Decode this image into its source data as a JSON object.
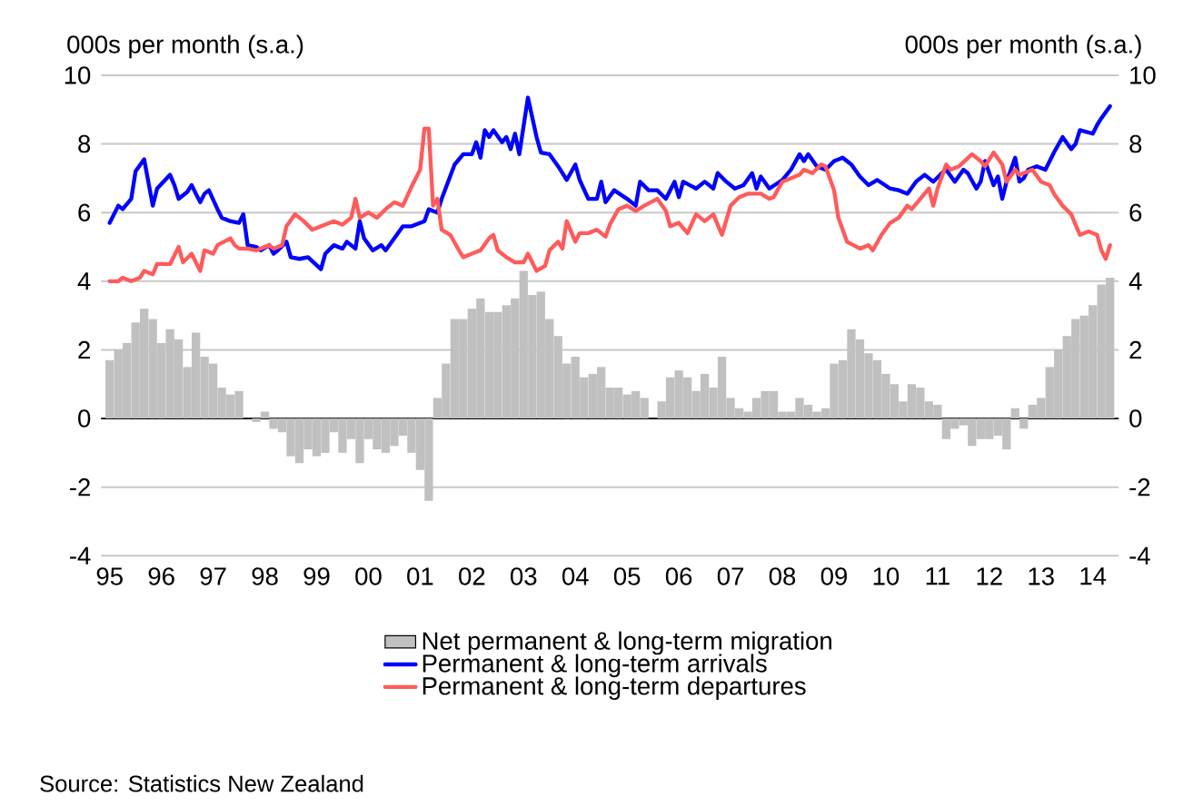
{
  "chart_data": {
    "type": "bar",
    "ylabel": "000s per month (s.a.)",
    "y2label": "000s per month (s.a.)",
    "xlim": [
      "1994-11",
      "2014-07"
    ],
    "xticks": [
      {
        "value": "1995",
        "label": "95"
      },
      {
        "value": "1996",
        "label": "96"
      },
      {
        "value": "1997",
        "label": "97"
      },
      {
        "value": "1998",
        "label": "98"
      },
      {
        "value": "1999",
        "label": "99"
      },
      {
        "value": "2000",
        "label": "00"
      },
      {
        "value": "2001",
        "label": "01"
      },
      {
        "value": "2002",
        "label": "02"
      },
      {
        "value": "2003",
        "label": "03"
      },
      {
        "value": "2004",
        "label": "04"
      },
      {
        "value": "2005",
        "label": "05"
      },
      {
        "value": "2006",
        "label": "06"
      },
      {
        "value": "2007",
        "label": "07"
      },
      {
        "value": "2008",
        "label": "08"
      },
      {
        "value": "2009",
        "label": "09"
      },
      {
        "value": "2010",
        "label": "10"
      },
      {
        "value": "2011",
        "label": "11"
      },
      {
        "value": "2012",
        "label": "12"
      },
      {
        "value": "2013",
        "label": "13"
      },
      {
        "value": "2014",
        "label": "14"
      }
    ],
    "ylim": [
      -4,
      10
    ],
    "yticks": [
      -4,
      -2,
      0,
      2,
      4,
      6,
      8,
      10
    ],
    "y2lim": [
      -4,
      10
    ],
    "y2ticks": [
      -4,
      -2,
      0,
      2,
      4,
      6,
      8,
      10
    ],
    "grid": "y",
    "legend": "bottom",
    "annotations": [
      "Source: Statistics New Zealand"
    ],
    "series": [
      {
        "name": "Net permanent & long-term migration",
        "color": "#c0c0c0",
        "x": [
          "1995-01",
          "1995-03",
          "1995-05",
          "1995-07",
          "1995-09",
          "1995-11",
          "1996-01",
          "1996-03",
          "1996-05",
          "1996-07",
          "1996-09",
          "1996-11",
          "1997-01",
          "1997-03",
          "1997-05",
          "1997-07",
          "1997-09",
          "1997-11",
          "1998-01",
          "1998-03",
          "1998-05",
          "1998-07",
          "1998-09",
          "1998-11",
          "1999-01",
          "1999-03",
          "1999-05",
          "1999-07",
          "1999-09",
          "1999-11",
          "2000-01",
          "2000-03",
          "2000-05",
          "2000-07",
          "2000-09",
          "2000-11",
          "2001-01",
          "2001-03",
          "2001-05",
          "2001-07",
          "2001-09",
          "2001-11",
          "2002-01",
          "2002-03",
          "2002-05",
          "2002-07",
          "2002-09",
          "2002-11",
          "2003-01",
          "2003-03",
          "2003-05",
          "2003-07",
          "2003-09",
          "2003-11",
          "2004-01",
          "2004-03",
          "2004-05",
          "2004-07",
          "2004-09",
          "2004-11",
          "2005-01",
          "2005-03",
          "2005-05",
          "2005-07",
          "2005-09",
          "2005-11",
          "2006-01",
          "2006-03",
          "2006-05",
          "2006-07",
          "2006-09",
          "2006-11",
          "2007-01",
          "2007-03",
          "2007-05",
          "2007-07",
          "2007-09",
          "2007-11",
          "2008-01",
          "2008-03",
          "2008-05",
          "2008-07",
          "2008-09",
          "2008-11",
          "2009-01",
          "2009-03",
          "2009-05",
          "2009-07",
          "2009-09",
          "2009-11",
          "2010-01",
          "2010-03",
          "2010-05",
          "2010-07",
          "2010-09",
          "2010-11",
          "2011-01",
          "2011-03",
          "2011-05",
          "2011-07",
          "2011-09",
          "2011-11",
          "2012-01",
          "2012-03",
          "2012-05",
          "2012-07",
          "2012-09",
          "2012-11",
          "2013-01",
          "2013-03",
          "2013-05",
          "2013-07",
          "2013-09",
          "2013-11",
          "2014-01",
          "2014-03",
          "2014-05"
        ],
        "values": [
          1.7,
          2.0,
          2.2,
          2.8,
          3.2,
          2.9,
          2.2,
          2.6,
          2.3,
          1.5,
          2.5,
          1.8,
          1.6,
          0.9,
          0.7,
          0.8,
          0.0,
          -0.1,
          0.2,
          -0.3,
          -0.4,
          -1.1,
          -1.3,
          -0.9,
          -1.1,
          -1.0,
          -0.4,
          -1.0,
          -0.6,
          -1.3,
          -0.6,
          -0.9,
          -1.0,
          -0.8,
          -0.5,
          -1.0,
          -1.5,
          -2.4,
          0.6,
          1.6,
          2.9,
          2.9,
          3.2,
          3.5,
          3.1,
          3.1,
          3.3,
          3.5,
          4.3,
          3.6,
          3.7,
          2.9,
          2.4,
          1.6,
          1.8,
          1.2,
          1.3,
          1.5,
          0.9,
          0.9,
          0.7,
          0.8,
          0.6,
          0.0,
          0.5,
          1.2,
          1.4,
          1.2,
          0.8,
          1.3,
          0.9,
          1.8,
          0.6,
          0.3,
          0.2,
          0.6,
          0.8,
          0.8,
          0.2,
          0.2,
          0.6,
          0.4,
          0.2,
          0.3,
          1.6,
          1.7,
          2.6,
          2.3,
          1.9,
          1.7,
          1.3,
          1.0,
          0.5,
          1.0,
          0.9,
          0.5,
          0.4,
          -0.6,
          -0.3,
          -0.2,
          -0.8,
          -0.6,
          -0.6,
          -0.5,
          -0.9,
          0.3,
          -0.3,
          0.4,
          0.6,
          1.5,
          2.0,
          2.4,
          2.9,
          3.0,
          3.3,
          3.9,
          4.1
        ]
      },
      {
        "name": "Permanent & long-term arrivals",
        "type": "line",
        "color": "#0000ff",
        "x": [
          "1995-01",
          "1995-03",
          "1995-04",
          "1995-06",
          "1995-07",
          "1995-09",
          "1995-11",
          "1995-12",
          "1996-03",
          "1996-04",
          "1996-05",
          "1996-07",
          "1996-08",
          "1996-10",
          "1996-11",
          "1996-12",
          "1997-02",
          "1997-03",
          "1997-05",
          "1997-07",
          "1997-08",
          "1997-09",
          "1997-11",
          "1997-12",
          "1998-02",
          "1998-03",
          "1998-04",
          "1998-06",
          "1998-07",
          "1998-09",
          "1998-11",
          "1999-02",
          "1999-03",
          "1999-05",
          "1999-07",
          "1999-08",
          "1999-10",
          "1999-11",
          "1999-12",
          "2000-02",
          "2000-04",
          "2000-05",
          "2000-07",
          "2000-09",
          "2000-11",
          "2001-02",
          "2001-03",
          "2001-05",
          "2001-06",
          "2001-09",
          "2001-11",
          "2002-01",
          "2002-02",
          "2002-03",
          "2002-04",
          "2002-05",
          "2002-06",
          "2002-08",
          "2002-09",
          "2002-10",
          "2002-11",
          "2002-12",
          "2003-02",
          "2003-04",
          "2003-05",
          "2003-07",
          "2003-09",
          "2003-11",
          "2004-01",
          "2004-02",
          "2004-04",
          "2004-06",
          "2004-07",
          "2004-08",
          "2004-10",
          "2005-01",
          "2005-03",
          "2005-04",
          "2005-06",
          "2005-08",
          "2005-10",
          "2005-12",
          "2006-01",
          "2006-02",
          "2006-05",
          "2006-07",
          "2006-09",
          "2006-10",
          "2006-12",
          "2007-02",
          "2007-04",
          "2007-06",
          "2007-07",
          "2007-08",
          "2007-10",
          "2008-01",
          "2008-03",
          "2008-05",
          "2008-06",
          "2008-07",
          "2008-09",
          "2008-11",
          "2009-01",
          "2009-03",
          "2009-05",
          "2009-07",
          "2009-09",
          "2009-11",
          "2010-02",
          "2010-04",
          "2010-06",
          "2010-08",
          "2010-10",
          "2010-12",
          "2011-02",
          "2011-03",
          "2011-05",
          "2011-07",
          "2011-08",
          "2011-10",
          "2011-11",
          "2011-12",
          "2012-02",
          "2012-03",
          "2012-04",
          "2012-05",
          "2012-07",
          "2012-08",
          "2012-09",
          "2012-10",
          "2012-12",
          "2013-02",
          "2013-04",
          "2013-06",
          "2013-08",
          "2013-09",
          "2013-10",
          "2014-01",
          "2014-02",
          "2014-03",
          "2014-05"
        ],
        "values": [
          5.7,
          6.2,
          6.1,
          6.4,
          7.2,
          7.55,
          6.2,
          6.7,
          7.1,
          6.8,
          6.4,
          6.6,
          6.8,
          6.3,
          6.55,
          6.65,
          6.1,
          5.85,
          5.75,
          5.7,
          5.95,
          5.05,
          5.0,
          4.9,
          5.05,
          4.8,
          4.9,
          5.15,
          4.7,
          4.65,
          4.7,
          4.35,
          4.8,
          5.05,
          4.95,
          5.15,
          4.95,
          5.75,
          5.25,
          4.9,
          5.05,
          4.9,
          5.25,
          5.6,
          5.6,
          5.75,
          6.1,
          6.0,
          6.4,
          7.4,
          7.7,
          7.7,
          8.05,
          7.6,
          8.4,
          8.2,
          8.4,
          8.05,
          8.2,
          7.85,
          8.3,
          7.7,
          9.35,
          8.2,
          7.75,
          7.7,
          7.35,
          6.95,
          7.4,
          6.95,
          6.4,
          6.4,
          6.9,
          6.3,
          6.65,
          6.4,
          6.2,
          6.9,
          6.65,
          6.65,
          6.4,
          6.9,
          6.45,
          6.9,
          6.7,
          6.9,
          6.7,
          7.15,
          6.9,
          6.7,
          6.8,
          7.15,
          6.7,
          7.05,
          6.7,
          6.95,
          7.25,
          7.7,
          7.5,
          7.7,
          7.35,
          7.25,
          7.5,
          7.6,
          7.4,
          7.05,
          6.8,
          6.95,
          6.7,
          6.65,
          6.55,
          6.9,
          7.1,
          6.9,
          7.15,
          7.25,
          6.9,
          7.25,
          7.15,
          6.7,
          6.9,
          7.5,
          6.8,
          7.05,
          6.4,
          6.9,
          7.6,
          6.9,
          7.0,
          7.25,
          7.35,
          7.25,
          7.75,
          8.2,
          7.85,
          8.0,
          8.4,
          8.3,
          8.55,
          8.75,
          9.1
        ]
      },
      {
        "name": "Permanent & long-term departures",
        "type": "line",
        "color": "#ff5b5b",
        "x": [
          "1995-01",
          "1995-03",
          "1995-04",
          "1995-06",
          "1995-08",
          "1995-09",
          "1995-11",
          "1995-12",
          "1996-01",
          "1996-03",
          "1996-04",
          "1996-05",
          "1996-06",
          "1996-08",
          "1996-10",
          "1996-11",
          "1997-01",
          "1997-02",
          "1997-05",
          "1997-06",
          "1997-07",
          "1997-09",
          "1997-11",
          "1998-02",
          "1998-03",
          "1998-05",
          "1998-06",
          "1998-08",
          "1998-10",
          "1998-12",
          "1999-02",
          "1999-05",
          "1999-07",
          "1999-09",
          "1999-10",
          "1999-11",
          "2000-01",
          "2000-03",
          "2000-05",
          "2000-07",
          "2000-09",
          "2000-11",
          "2001-01",
          "2001-02",
          "2001-03",
          "2001-04",
          "2001-05",
          "2001-06",
          "2001-08",
          "2001-10",
          "2001-11",
          "2002-01",
          "2002-03",
          "2002-05",
          "2002-06",
          "2002-07",
          "2002-09",
          "2002-11",
          "2003-01",
          "2003-02",
          "2003-04",
          "2003-06",
          "2003-07",
          "2003-09",
          "2003-10",
          "2003-11",
          "2004-01",
          "2004-02",
          "2004-04",
          "2004-06",
          "2004-08",
          "2004-09",
          "2004-11",
          "2005-01",
          "2005-03",
          "2005-05",
          "2005-08",
          "2005-10",
          "2005-11",
          "2006-01",
          "2006-03",
          "2006-05",
          "2006-07",
          "2006-09",
          "2006-11",
          "2007-01",
          "2007-03",
          "2007-05",
          "2007-08",
          "2007-10",
          "2007-11",
          "2008-01",
          "2008-03",
          "2008-05",
          "2008-06",
          "2008-08",
          "2008-10",
          "2008-11",
          "2009-01",
          "2009-02",
          "2009-04",
          "2009-07",
          "2009-09",
          "2009-10",
          "2009-12",
          "2010-02",
          "2010-04",
          "2010-06",
          "2010-07",
          "2010-09",
          "2010-11",
          "2010-12",
          "2011-01",
          "2011-03",
          "2011-04",
          "2011-06",
          "2011-09",
          "2011-11",
          "2011-12",
          "2012-02",
          "2012-04",
          "2012-05",
          "2012-07",
          "2012-08",
          "2012-11",
          "2013-01",
          "2013-03",
          "2013-04",
          "2013-06",
          "2013-08",
          "2013-10",
          "2013-12",
          "2014-02",
          "2014-03",
          "2014-04",
          "2014-05"
        ],
        "values": [
          4.0,
          4.0,
          4.1,
          4.0,
          4.1,
          4.3,
          4.2,
          4.5,
          4.5,
          4.5,
          4.75,
          5.0,
          4.55,
          4.8,
          4.3,
          4.9,
          4.8,
          5.05,
          5.25,
          5.05,
          4.95,
          4.95,
          4.9,
          5.05,
          4.95,
          5.05,
          5.6,
          5.95,
          5.75,
          5.5,
          5.6,
          5.75,
          5.65,
          5.85,
          6.4,
          5.85,
          6.0,
          5.85,
          6.1,
          6.3,
          6.2,
          6.75,
          7.25,
          8.45,
          8.45,
          6.2,
          6.4,
          5.5,
          5.35,
          4.9,
          4.7,
          4.8,
          4.9,
          5.25,
          5.35,
          4.9,
          4.7,
          4.55,
          4.55,
          4.8,
          4.3,
          4.45,
          4.9,
          5.15,
          4.95,
          5.75,
          5.15,
          5.4,
          5.4,
          5.5,
          5.3,
          5.65,
          6.1,
          6.2,
          6.05,
          6.2,
          6.4,
          6.05,
          5.6,
          5.7,
          5.4,
          5.95,
          5.75,
          5.95,
          5.35,
          6.2,
          6.45,
          6.55,
          6.55,
          6.4,
          6.45,
          6.9,
          7.0,
          7.1,
          7.25,
          7.15,
          7.4,
          7.35,
          6.65,
          5.85,
          5.15,
          4.95,
          5.05,
          4.9,
          5.35,
          5.7,
          5.85,
          6.2,
          6.1,
          6.4,
          6.7,
          6.2,
          6.7,
          7.4,
          7.25,
          7.35,
          7.7,
          7.5,
          7.35,
          7.75,
          7.4,
          6.9,
          7.25,
          7.1,
          7.25,
          6.9,
          6.8,
          6.55,
          6.2,
          5.95,
          5.35,
          5.45,
          5.35,
          4.9,
          4.65,
          5.05
        ]
      }
    ]
  }
}
